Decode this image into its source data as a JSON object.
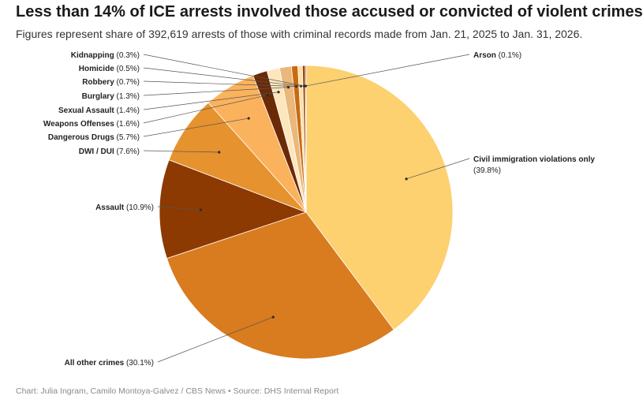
{
  "header": {
    "title": "Less than 14% of ICE arrests involved those accused or convicted of violent crimes",
    "subtitle": "Figures represent share of 392,619 arrests of those with criminal records made from Jan. 21, 2025 to Jan. 31, 2026."
  },
  "footer": {
    "credit": "Chart: Julia Ingram, Camilo Montoya-Galvez / CBS News • Source: DHS Internal Report"
  },
  "chart_data": {
    "type": "pie",
    "slices": [
      {
        "name": "Civil immigration violations only",
        "value": 39.8,
        "display": "(39.8%)",
        "color": "#fdd070"
      },
      {
        "name": "All other crimes",
        "value": 30.1,
        "display": "(30.1%)",
        "color": "#d97b1f"
      },
      {
        "name": "Assault",
        "value": 10.9,
        "display": "(10.9%)",
        "color": "#8c3a02"
      },
      {
        "name": "DWI / DUI",
        "value": 7.6,
        "display": "(7.6%)",
        "color": "#e6922f"
      },
      {
        "name": "Dangerous Drugs",
        "value": 5.7,
        "display": "(5.7%)",
        "color": "#fbb25c"
      },
      {
        "name": "Weapons Offenses",
        "value": 1.6,
        "display": "(1.6%)",
        "color": "#6b2a06"
      },
      {
        "name": "Sexual Assault",
        "value": 1.4,
        "display": "(1.4%)",
        "color": "#fde6bc"
      },
      {
        "name": "Burglary",
        "value": 1.3,
        "display": "(1.3%)",
        "color": "#e9b87a"
      },
      {
        "name": "Robbery",
        "value": 0.7,
        "display": "(0.7%)",
        "color": "#c96a12"
      },
      {
        "name": "Homicide",
        "value": 0.5,
        "display": "(0.5%)",
        "color": "#fde0a8"
      },
      {
        "name": "Kidnapping",
        "value": 0.3,
        "display": "(0.3%)",
        "color": "#9a4306"
      },
      {
        "name": "Arson",
        "value": 0.1,
        "display": "(0.1%)",
        "color": "#4a1e04"
      }
    ]
  }
}
